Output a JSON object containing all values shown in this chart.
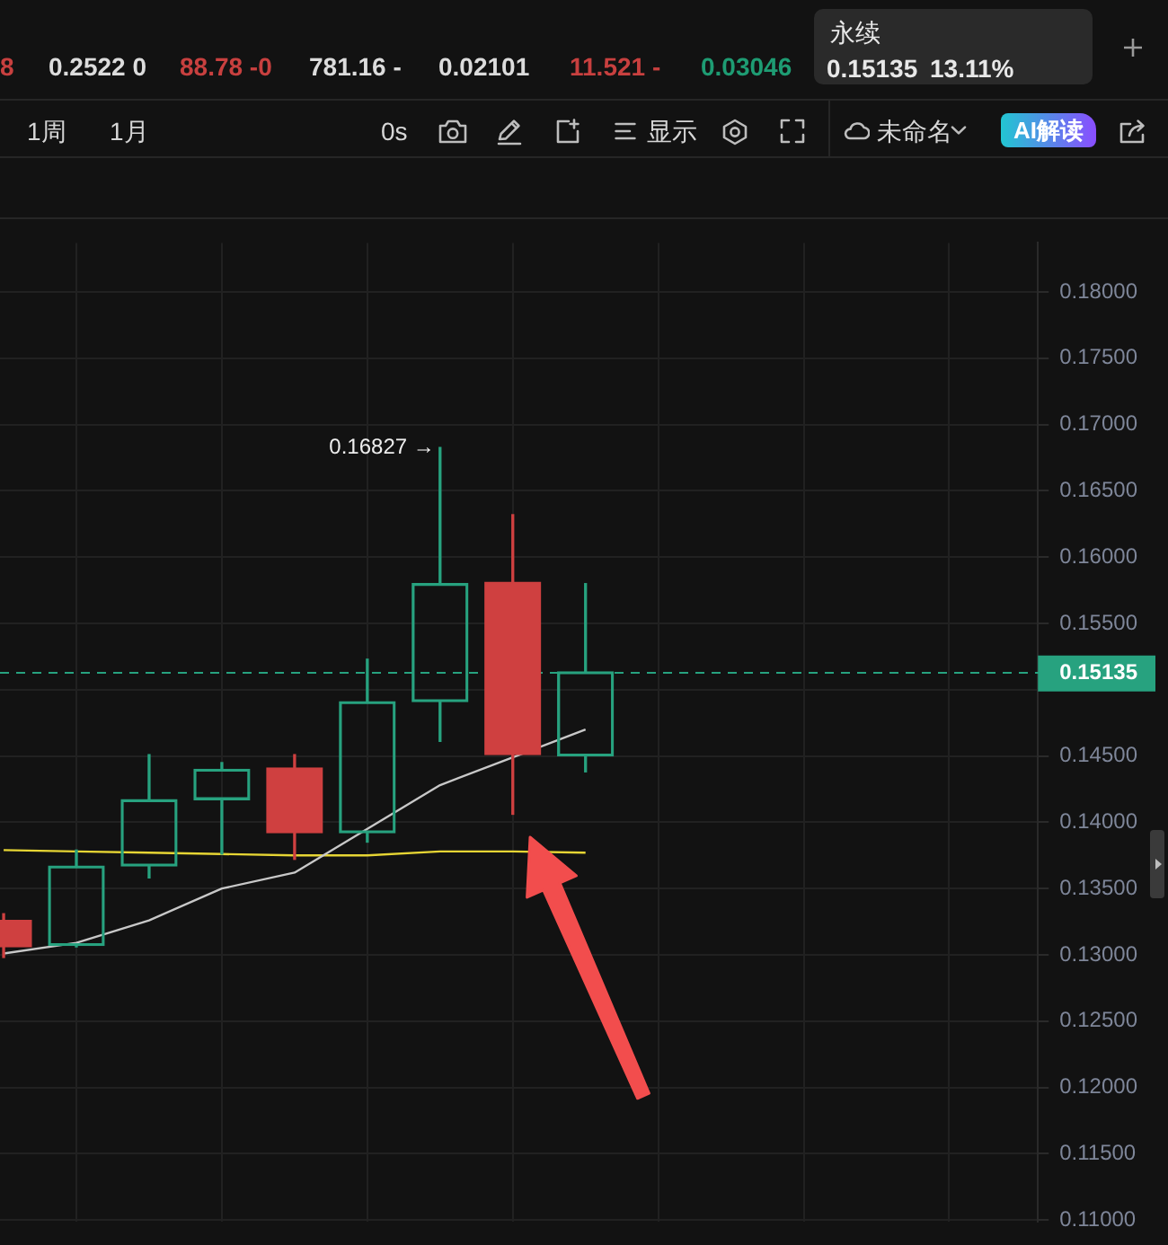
{
  "chart_data": {
    "type": "candlestick",
    "title": "永续",
    "subtitle": "0.15135 13.11%",
    "categories": [
      null,
      null,
      null,
      null,
      null,
      null,
      null,
      null,
      null
    ],
    "ohlc": [
      [
        0.1326,
        0.1331,
        0.1298,
        0.1306
      ],
      [
        0.1307,
        0.1379,
        0.1306,
        0.1367
      ],
      [
        0.1367,
        0.1451,
        0.1358,
        0.1417
      ],
      [
        0.1417,
        0.1445,
        0.1376,
        0.144
      ],
      [
        0.1441,
        0.1451,
        0.1372,
        0.1392
      ],
      [
        0.1392,
        0.1523,
        0.1385,
        0.1491
      ],
      [
        0.1491,
        0.16827,
        0.1461,
        0.158
      ],
      [
        0.1581,
        0.1632,
        0.1406,
        0.1451
      ],
      [
        0.145,
        0.158,
        0.1438,
        0.15135
      ]
    ],
    "colors": [
      "#cf4040",
      "#27a27f",
      "#27a27f",
      "#27a27f",
      "#cf4040",
      "#27a27f",
      "#27a27f",
      "#cf4040",
      "#27a27f"
    ],
    "series": [
      {
        "type": "line",
        "color": "#c8c8c8",
        "values": [
          0.1301,
          0.1309,
          0.1326,
          0.135,
          0.1362,
          0.1395,
          0.1428,
          0.1449,
          0.147
        ]
      },
      {
        "type": "line",
        "color": "#e6d534",
        "values": [
          0.1379,
          0.1378,
          0.1377,
          0.1376,
          0.1375,
          0.1375,
          0.1378,
          0.1378,
          0.1377
        ]
      }
    ],
    "marker": "none",
    "ylim": [
      0.1099,
      0.1837
    ],
    "yticks": [
      {
        "value": 0.11,
        "label": "0.11000"
      },
      {
        "value": 0.115,
        "label": "0.11500"
      },
      {
        "value": 0.12,
        "label": "0.12000"
      },
      {
        "value": 0.125,
        "label": "0.12500"
      },
      {
        "value": 0.13,
        "label": "0.13000"
      },
      {
        "value": 0.135,
        "label": "0.13500"
      },
      {
        "value": 0.14,
        "label": "0.14000"
      },
      {
        "value": 0.145,
        "label": "0.14500"
      },
      {
        "value": 0.15,
        "label": null
      },
      {
        "value": 0.155,
        "label": "0.15500"
      },
      {
        "value": 0.16,
        "label": "0.16000"
      },
      {
        "value": 0.165,
        "label": "0.16500"
      },
      {
        "value": 0.17,
        "label": "0.17000"
      },
      {
        "value": 0.175,
        "label": "0.17500"
      },
      {
        "value": 0.18,
        "label": "0.18000"
      }
    ],
    "grid": true,
    "ref_lines": [
      {
        "axis": "y",
        "value": 0.15135,
        "label": "0.15135",
        "color": "#27a27f",
        "line_style": "dashed"
      }
    ],
    "annotations": [
      "0.16827 →",
      "8",
      "0.2522 0",
      "88.78 -0",
      "781.16 -",
      "0.02101",
      "11.521 -",
      "0.03046",
      "1周",
      "1月",
      "0s",
      "显示",
      "未命名",
      "AI解读"
    ]
  }
}
